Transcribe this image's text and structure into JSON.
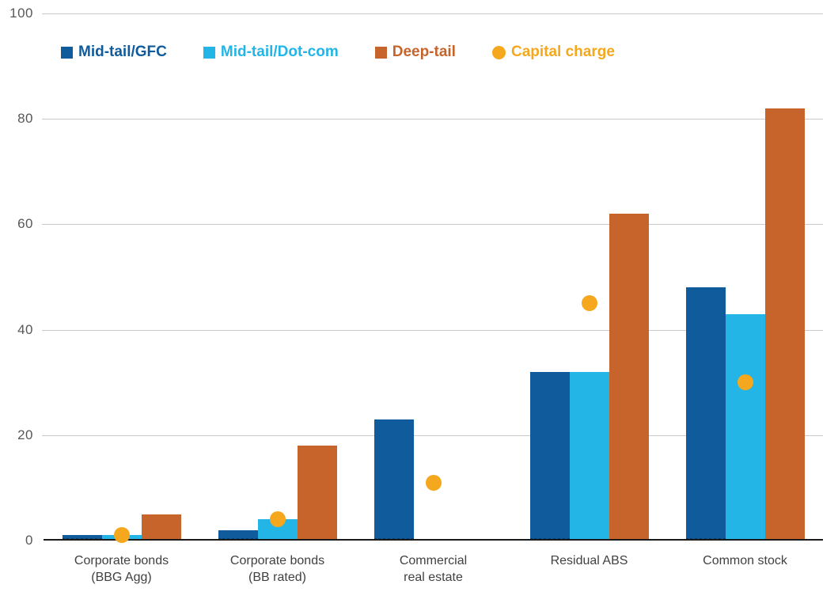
{
  "chart_data": {
    "type": "bar",
    "title": "",
    "xlabel": "",
    "ylabel": "",
    "ylim": [
      0,
      100
    ],
    "yticks": [
      0,
      20,
      40,
      60,
      80,
      100
    ],
    "grid": true,
    "legend_position": "top-left",
    "categories": [
      "Corporate bonds\n(BBG Agg)",
      "Corporate bonds\n(BB rated)",
      "Commercial\nreal estate",
      "Residual ABS",
      "Common stock"
    ],
    "series": [
      {
        "name": "Mid-tail/GFC",
        "color": "#0F5B9B",
        "values": [
          1,
          2,
          23,
          32,
          48
        ]
      },
      {
        "name": "Mid-tail/Dot-com",
        "color": "#22B5E6",
        "values": [
          1,
          4,
          null,
          32,
          43
        ]
      },
      {
        "name": "Deep-tail",
        "color": "#C6642B",
        "values": [
          5,
          18,
          null,
          62,
          82
        ]
      }
    ],
    "point_series": {
      "name": "Capital charge",
      "color": "#F5A81D",
      "values": [
        1,
        4,
        11,
        45,
        30
      ]
    }
  },
  "colors": {
    "background": "#FFFFFF",
    "gridline": "#C9C9C9",
    "axis_line": "#1A1A1A",
    "y_tick_label": "#58585A",
    "x_category_label": "#414042"
  }
}
